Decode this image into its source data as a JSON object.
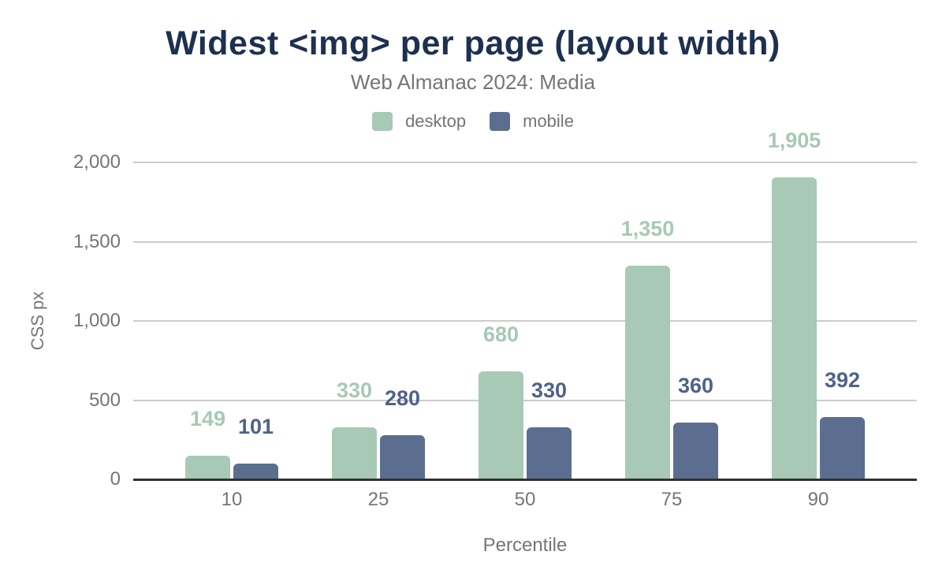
{
  "chart_data": {
    "type": "bar",
    "title": "Widest <img> per page (layout width)",
    "subtitle": "Web Almanac 2024: Media",
    "xlabel": "Percentile",
    "ylabel": "CSS px",
    "categories": [
      "10",
      "25",
      "50",
      "75",
      "90"
    ],
    "series": [
      {
        "name": "desktop",
        "color": "#a7c9b6",
        "label_color": "#a7c9b6",
        "values": [
          149,
          330,
          680,
          1350,
          1905
        ],
        "labels": [
          "149",
          "330",
          "680",
          "1,350",
          "1,905"
        ]
      },
      {
        "name": "mobile",
        "color": "#5b6e90",
        "label_color": "#4f6288",
        "values": [
          101,
          280,
          330,
          360,
          392
        ],
        "labels": [
          "101",
          "280",
          "330",
          "360",
          "392"
        ]
      }
    ],
    "ylim": [
      0,
      2000
    ],
    "yticks": [
      {
        "value": 0,
        "label": "0"
      },
      {
        "value": 500,
        "label": "500"
      },
      {
        "value": 1000,
        "label": "1,000"
      },
      {
        "value": 1500,
        "label": "1,500"
      },
      {
        "value": 2000,
        "label": "2,000"
      }
    ],
    "grid": true,
    "legend_position": "top",
    "colors": {
      "title": "#1e3050",
      "muted_text": "#757575",
      "gridline": "#cccccc",
      "axis_line": "#303030",
      "background": "#ffffff"
    }
  }
}
